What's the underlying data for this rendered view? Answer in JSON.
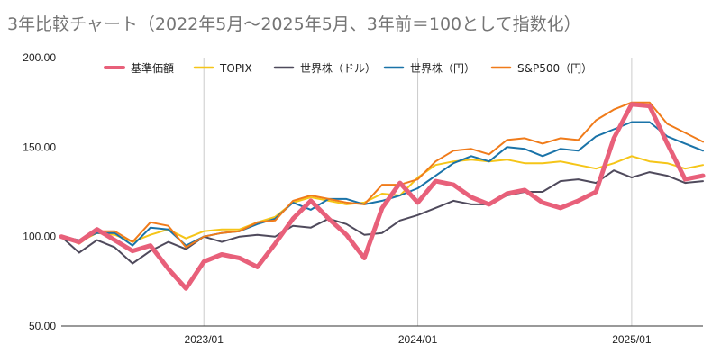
{
  "chart_data": {
    "type": "line",
    "title": "3年比較チャート（2022年5月～2025年5月、3年前＝100として指数化）",
    "xlabel": "",
    "ylabel": "",
    "ylim": [
      50,
      200
    ],
    "y_ticks": [
      "200.00",
      "150.00",
      "100.00",
      "50.00"
    ],
    "x_ticks": [
      "2023/01",
      "2024/01",
      "2025/01"
    ],
    "x": [
      "2022/05",
      "2022/06",
      "2022/07",
      "2022/08",
      "2022/09",
      "2022/10",
      "2022/11",
      "2022/12",
      "2023/01",
      "2023/02",
      "2023/03",
      "2023/04",
      "2023/05",
      "2023/06",
      "2023/07",
      "2023/08",
      "2023/09",
      "2023/10",
      "2023/11",
      "2023/12",
      "2024/01",
      "2024/02",
      "2024/03",
      "2024/04",
      "2024/05",
      "2024/06",
      "2024/07",
      "2024/08",
      "2024/09",
      "2024/10",
      "2024/11",
      "2024/12",
      "2025/01",
      "2025/02",
      "2025/03",
      "2025/04",
      "2025/05"
    ],
    "grid": "vertical",
    "legend_position": "top",
    "series": [
      {
        "name": "基準価額",
        "color": "#e8607a",
        "width": 5,
        "values": [
          100,
          97,
          104,
          98,
          92,
          95,
          82,
          71,
          86,
          90,
          88,
          83,
          96,
          110,
          120,
          110,
          101,
          88,
          116,
          130,
          119,
          131,
          129,
          122,
          118,
          124,
          126,
          119,
          116,
          120,
          125,
          155,
          174,
          173,
          152,
          132,
          134
        ]
      },
      {
        "name": "TOPIX",
        "color": "#f5c518",
        "width": 2,
        "values": [
          100,
          97,
          102,
          101,
          97,
          101,
          104,
          99,
          103,
          104,
          104,
          108,
          111,
          119,
          122,
          120,
          118,
          119,
          124,
          123,
          133,
          140,
          142,
          143,
          142,
          143,
          141,
          141,
          142,
          140,
          138,
          141,
          145,
          142,
          141,
          138,
          140
        ]
      },
      {
        "name": "世界株（ドル）",
        "color": "#4f4a5c",
        "width": 2,
        "values": [
          100,
          91,
          98,
          94,
          85,
          92,
          97,
          93,
          100,
          97,
          100,
          101,
          100,
          106,
          105,
          110,
          107,
          101,
          102,
          109,
          112,
          116,
          120,
          118,
          118,
          123,
          125,
          125,
          131,
          132,
          130,
          137,
          133,
          136,
          134,
          130,
          131
        ]
      },
      {
        "name": "世界株（円）",
        "color": "#1a73a8",
        "width": 2,
        "values": [
          100,
          98,
          102,
          102,
          95,
          105,
          104,
          95,
          100,
          102,
          103,
          107,
          110,
          119,
          115,
          121,
          121,
          118,
          120,
          123,
          127,
          134,
          141,
          145,
          142,
          150,
          149,
          145,
          149,
          148,
          156,
          160,
          164,
          164,
          156,
          152,
          148
        ]
      },
      {
        "name": "S&P500（円）",
        "color": "#f07b1a",
        "width": 2,
        "values": [
          100,
          96,
          103,
          103,
          97,
          108,
          106,
          94,
          100,
          102,
          103,
          108,
          109,
          120,
          123,
          121,
          119,
          118,
          129,
          129,
          132,
          142,
          148,
          149,
          146,
          154,
          155,
          152,
          155,
          154,
          165,
          171,
          175,
          175,
          163,
          158,
          153
        ]
      }
    ]
  }
}
